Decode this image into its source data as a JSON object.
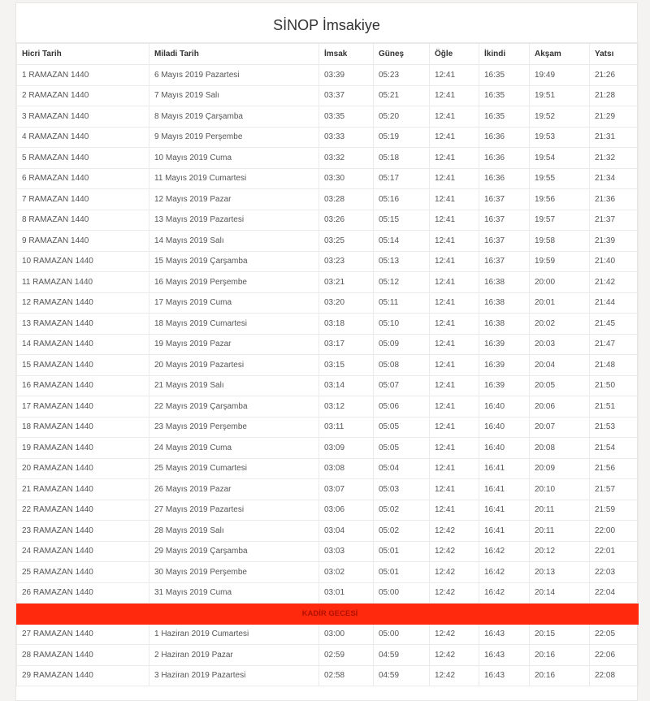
{
  "title": "SİNOP İmsakiye",
  "colors": {
    "highlight_row": "#ff2a0d"
  },
  "headers": [
    "Hicri Tarih",
    "Miladi Tarih",
    "İmsak",
    "Güneş",
    "Öğle",
    "İkindi",
    "Akşam",
    "Yatsı"
  ],
  "special_label": "KADİR GECESİ",
  "rows": [
    [
      "1 RAMAZAN 1440",
      "6 Mayıs 2019 Pazartesi",
      "03:39",
      "05:23",
      "12:41",
      "16:35",
      "19:49",
      "21:26"
    ],
    [
      "2 RAMAZAN 1440",
      "7 Mayıs 2019 Salı",
      "03:37",
      "05:21",
      "12:41",
      "16:35",
      "19:51",
      "21:28"
    ],
    [
      "3 RAMAZAN 1440",
      "8 Mayıs 2019 Çarşamba",
      "03:35",
      "05:20",
      "12:41",
      "16:35",
      "19:52",
      "21:29"
    ],
    [
      "4 RAMAZAN 1440",
      "9 Mayıs 2019 Perşembe",
      "03:33",
      "05:19",
      "12:41",
      "16:36",
      "19:53",
      "21:31"
    ],
    [
      "5 RAMAZAN 1440",
      "10 Mayıs 2019 Cuma",
      "03:32",
      "05:18",
      "12:41",
      "16:36",
      "19:54",
      "21:32"
    ],
    [
      "6 RAMAZAN 1440",
      "11 Mayıs 2019 Cumartesi",
      "03:30",
      "05:17",
      "12:41",
      "16:36",
      "19:55",
      "21:34"
    ],
    [
      "7 RAMAZAN 1440",
      "12 Mayıs 2019 Pazar",
      "03:28",
      "05:16",
      "12:41",
      "16:37",
      "19:56",
      "21:36"
    ],
    [
      "8 RAMAZAN 1440",
      "13 Mayıs 2019 Pazartesi",
      "03:26",
      "05:15",
      "12:41",
      "16:37",
      "19:57",
      "21:37"
    ],
    [
      "9 RAMAZAN 1440",
      "14 Mayıs 2019 Salı",
      "03:25",
      "05:14",
      "12:41",
      "16:37",
      "19:58",
      "21:39"
    ],
    [
      "10 RAMAZAN 1440",
      "15 Mayıs 2019 Çarşamba",
      "03:23",
      "05:13",
      "12:41",
      "16:37",
      "19:59",
      "21:40"
    ],
    [
      "11 RAMAZAN 1440",
      "16 Mayıs 2019 Perşembe",
      "03:21",
      "05:12",
      "12:41",
      "16:38",
      "20:00",
      "21:42"
    ],
    [
      "12 RAMAZAN 1440",
      "17 Mayıs 2019 Cuma",
      "03:20",
      "05:11",
      "12:41",
      "16:38",
      "20:01",
      "21:44"
    ],
    [
      "13 RAMAZAN 1440",
      "18 Mayıs 2019 Cumartesi",
      "03:18",
      "05:10",
      "12:41",
      "16:38",
      "20:02",
      "21:45"
    ],
    [
      "14 RAMAZAN 1440",
      "19 Mayıs 2019 Pazar",
      "03:17",
      "05:09",
      "12:41",
      "16:39",
      "20:03",
      "21:47"
    ],
    [
      "15 RAMAZAN 1440",
      "20 Mayıs 2019 Pazartesi",
      "03:15",
      "05:08",
      "12:41",
      "16:39",
      "20:04",
      "21:48"
    ],
    [
      "16 RAMAZAN 1440",
      "21 Mayıs 2019 Salı",
      "03:14",
      "05:07",
      "12:41",
      "16:39",
      "20:05",
      "21:50"
    ],
    [
      "17 RAMAZAN 1440",
      "22 Mayıs 2019 Çarşamba",
      "03:12",
      "05:06",
      "12:41",
      "16:40",
      "20:06",
      "21:51"
    ],
    [
      "18 RAMAZAN 1440",
      "23 Mayıs 2019 Perşembe",
      "03:11",
      "05:05",
      "12:41",
      "16:40",
      "20:07",
      "21:53"
    ],
    [
      "19 RAMAZAN 1440",
      "24 Mayıs 2019 Cuma",
      "03:09",
      "05:05",
      "12:41",
      "16:40",
      "20:08",
      "21:54"
    ],
    [
      "20 RAMAZAN 1440",
      "25 Mayıs 2019 Cumartesi",
      "03:08",
      "05:04",
      "12:41",
      "16:41",
      "20:09",
      "21:56"
    ],
    [
      "21 RAMAZAN 1440",
      "26 Mayıs 2019 Pazar",
      "03:07",
      "05:03",
      "12:41",
      "16:41",
      "20:10",
      "21:57"
    ],
    [
      "22 RAMAZAN 1440",
      "27 Mayıs 2019 Pazartesi",
      "03:06",
      "05:02",
      "12:41",
      "16:41",
      "20:11",
      "21:59"
    ],
    [
      "23 RAMAZAN 1440",
      "28 Mayıs 2019 Salı",
      "03:04",
      "05:02",
      "12:42",
      "16:41",
      "20:11",
      "22:00"
    ],
    [
      "24 RAMAZAN 1440",
      "29 Mayıs 2019 Çarşamba",
      "03:03",
      "05:01",
      "12:42",
      "16:42",
      "20:12",
      "22:01"
    ],
    [
      "25 RAMAZAN 1440",
      "30 Mayıs 2019 Perşembe",
      "03:02",
      "05:01",
      "12:42",
      "16:42",
      "20:13",
      "22:03"
    ],
    [
      "26 RAMAZAN 1440",
      "31 Mayıs 2019 Cuma",
      "03:01",
      "05:00",
      "12:42",
      "16:42",
      "20:14",
      "22:04"
    ],
    [
      "27 RAMAZAN 1440",
      "1 Haziran 2019 Cumartesi",
      "03:00",
      "05:00",
      "12:42",
      "16:43",
      "20:15",
      "22:05"
    ],
    [
      "28 RAMAZAN 1440",
      "2 Haziran 2019 Pazar",
      "02:59",
      "04:59",
      "12:42",
      "16:43",
      "20:16",
      "22:06"
    ],
    [
      "29 RAMAZAN 1440",
      "3 Haziran 2019 Pazartesi",
      "02:58",
      "04:59",
      "12:42",
      "16:43",
      "20:16",
      "22:08"
    ]
  ],
  "special_after_row": 26
}
